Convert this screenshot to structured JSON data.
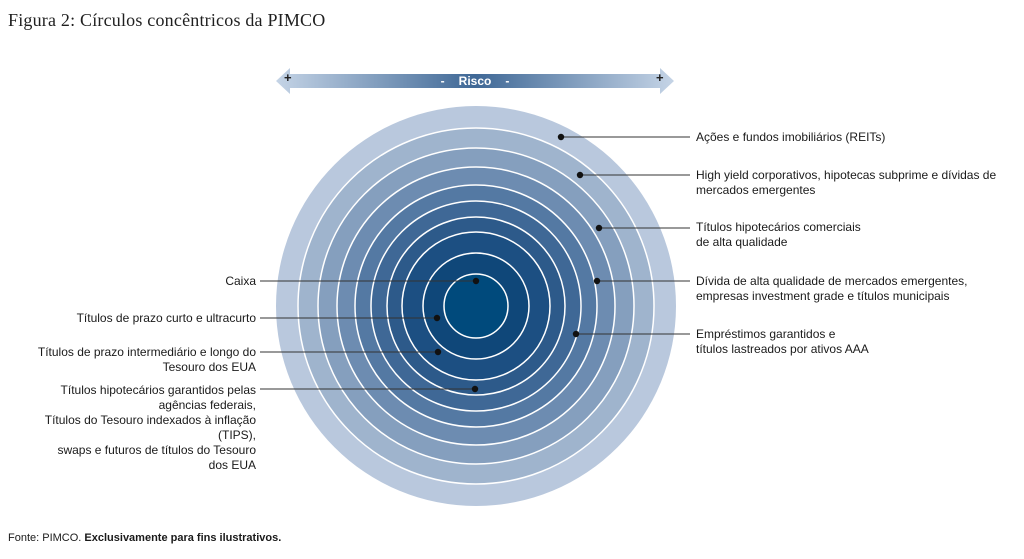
{
  "title": "Figura 2: Círculos concêntricos da PIMCO",
  "risk_axis": {
    "left_sign": "+",
    "center_left": "-",
    "label": "Risco",
    "center_right": "-",
    "right_sign": "+"
  },
  "colors": {
    "rings_outer_to_inner": [
      "#b9c8dd",
      "#9fb4cd",
      "#859fbe",
      "#6d8cb1",
      "#5479a3",
      "#3f6896",
      "#2d5a8a",
      "#1c4f82",
      "#0f4779",
      "#004a7c"
    ],
    "ring_stroke": "#ffffff",
    "arrow_gradient": [
      "#c5d4e6",
      "#3f6896",
      "#c5d4e6"
    ]
  },
  "labels_left": [
    "Caixa",
    "Títulos de prazo curto e ultracurto",
    "Títulos de prazo intermediário e longo do\nTesouro dos EUA",
    "Títulos hipotecários garantidos pelas\nagências federais,\nTítulos do Tesouro indexados à inflação\n(TIPS),\nswaps e futuros de títulos do Tesouro\ndos EUA"
  ],
  "labels_right": [
    "Ações e fundos imobiliários (REITs)",
    "High yield corporativos, hipotecas subprime e dívidas de\nmercados emergentes",
    "Títulos hipotecários comerciais\nde alta qualidade",
    "Dívida de alta qualidade de mercados emergentes,\nempresas investment grade e títulos municipais",
    "Empréstimos garantidos e\ntítulos lastreados por ativos AAA"
  ],
  "footer": {
    "source": "Fonte: PIMCO.",
    "note": "Exclusivamente para fins ilustrativos."
  }
}
